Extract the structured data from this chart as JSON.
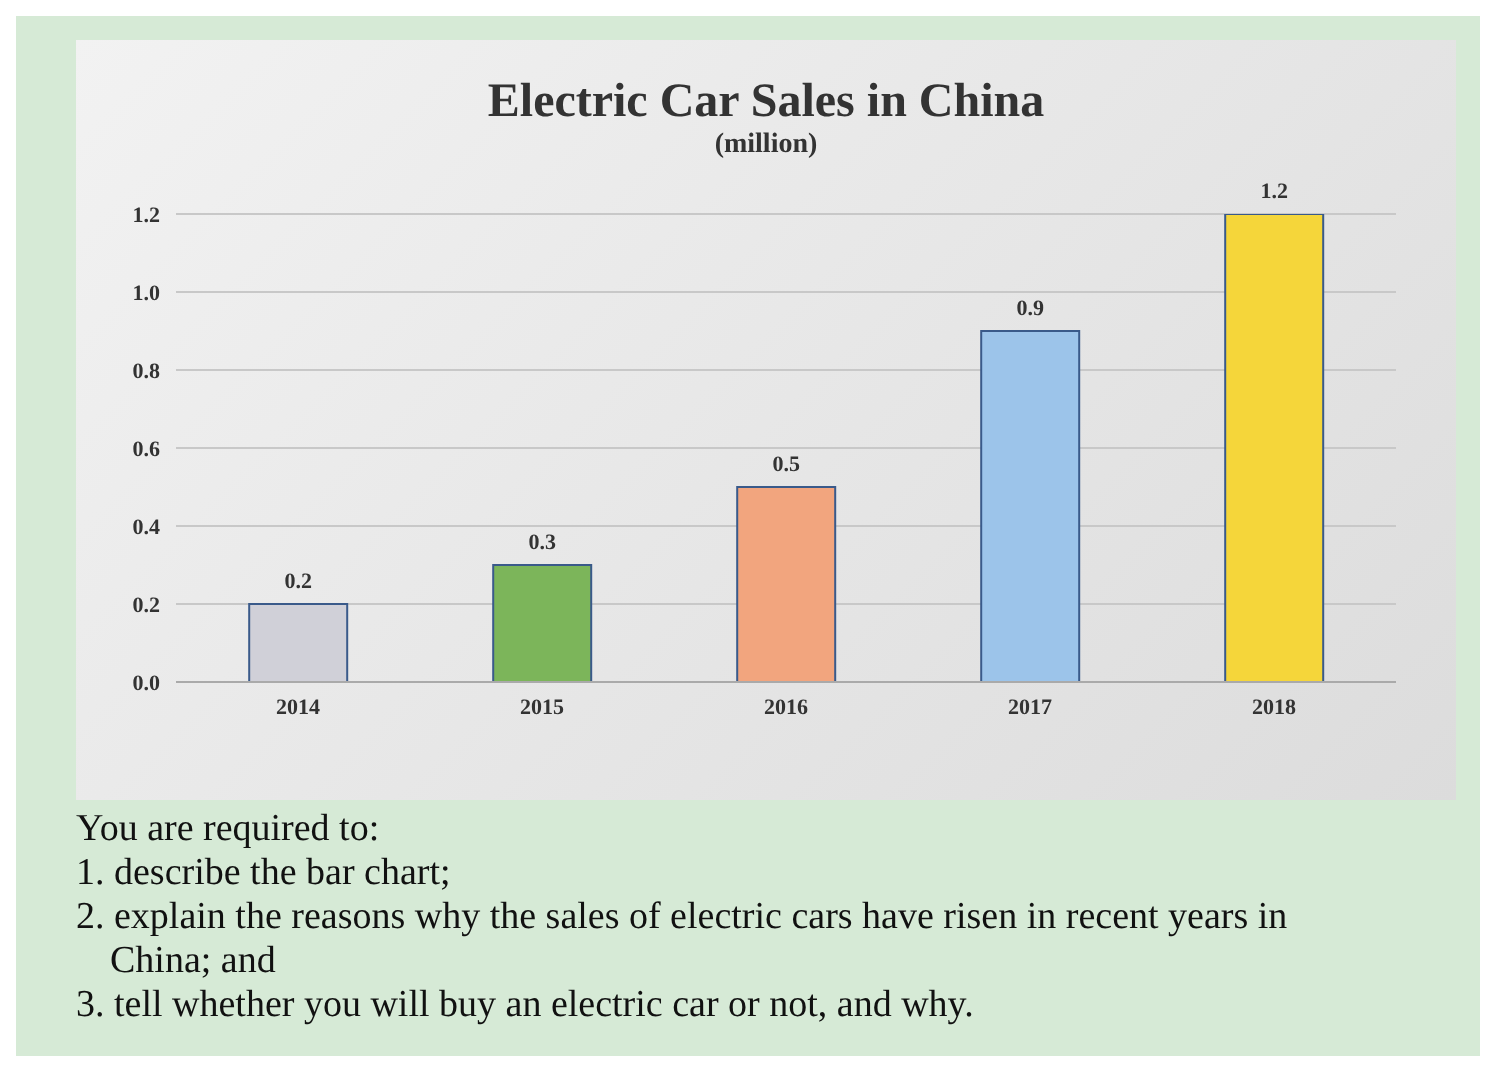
{
  "chart_data": {
    "type": "bar",
    "title": "Electric Car Sales in China",
    "subtitle": "(million)",
    "categories": [
      "2014",
      "2015",
      "2016",
      "2017",
      "2018"
    ],
    "values": [
      0.2,
      0.3,
      0.5,
      0.9,
      1.2
    ],
    "colors": [
      "#d0d0d8",
      "#7cb55a",
      "#f2a57e",
      "#9cc4ea",
      "#f5d63a"
    ],
    "data_labels": true,
    "ylim": [
      0,
      1.2
    ],
    "yticks": [
      {
        "value": 0,
        "label": "0.0"
      },
      0.2,
      0.4,
      0.6,
      0.8,
      {
        "value": 1,
        "label": "1.0"
      },
      1.2
    ],
    "grid": "y",
    "annotations": [
      "You are required to:",
      "1. describe the bar chart;",
      "2. explain the reasons why the sales of electric cars have risen in recent years in China; and",
      "3. tell whether you will buy an electric car or not, and why."
    ]
  }
}
